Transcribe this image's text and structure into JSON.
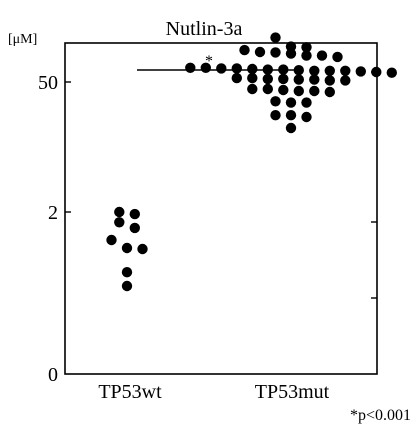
{
  "chart_data": {
    "type": "scatter",
    "title": "Nutlin-3a",
    "ylabel": "[μM]",
    "y_scale": "log",
    "y_tick_labels": [
      "0",
      "2",
      "50"
    ],
    "categories": [
      "TP53wt",
      "TP53mut"
    ],
    "series": [
      {
        "values": [
          2.0,
          1.9,
          1.55,
          1.35,
          1.0,
          0.82,
          0.8,
          0.45,
          0.32
        ]
      },
      {
        "values": [
          150,
          110,
          118,
          105,
          120,
          96,
          96,
          93,
          101,
          104,
          71,
          71,
          70,
          70,
          69,
          68,
          68,
          67,
          66,
          66,
          66,
          65,
          64,
          63,
          55,
          55,
          54,
          54,
          53,
          53,
          52,
          52,
          42,
          42,
          41,
          40,
          40,
          39,
          31,
          30,
          30,
          22,
          22,
          21,
          16
        ]
      }
    ],
    "grid": false,
    "significance": {
      "between": [
        "TP53wt",
        "TP53mut"
      ],
      "marker": "*",
      "note": "*p<0.001"
    }
  }
}
